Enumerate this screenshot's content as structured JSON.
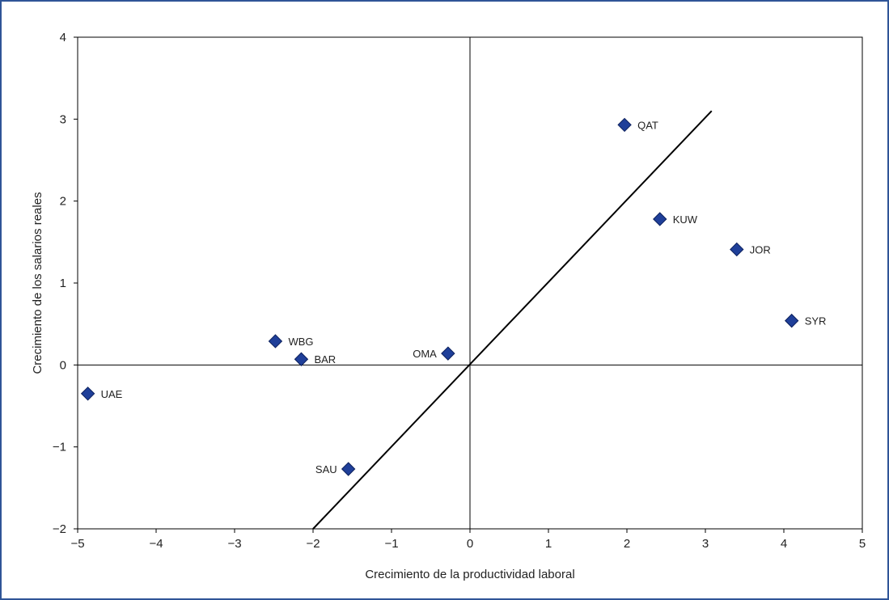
{
  "chart_data": {
    "type": "scatter",
    "title": "",
    "xlabel": "Crecimiento de la productividad laboral",
    "ylabel": "Crecimiento de los salarios reales",
    "xlim": [
      -5,
      5
    ],
    "ylim": [
      -2,
      4
    ],
    "xticks": [
      -5,
      -4,
      -3,
      -2,
      -1,
      0,
      1,
      2,
      3,
      4,
      5
    ],
    "yticks": [
      -2,
      -1,
      0,
      1,
      2,
      3,
      4
    ],
    "xtick_labels": [
      "−5",
      "−4",
      "−3",
      "−2",
      "−1",
      "0",
      "1",
      "2",
      "3",
      "4",
      "5"
    ],
    "ytick_labels": [
      "−2",
      "−1",
      "0",
      "1",
      "2",
      "3",
      "4"
    ],
    "grid": false,
    "marker_color": "#1f3f99",
    "points": [
      {
        "label": "UAE",
        "x": -4.87,
        "y": -0.35,
        "label_side": "right"
      },
      {
        "label": "WBG",
        "x": -2.48,
        "y": 0.29,
        "label_side": "right"
      },
      {
        "label": "BAR",
        "x": -2.15,
        "y": 0.07,
        "label_side": "right"
      },
      {
        "label": "SAU",
        "x": -1.55,
        "y": -1.27,
        "label_side": "left"
      },
      {
        "label": "OMA",
        "x": -0.28,
        "y": 0.14,
        "label_side": "left"
      },
      {
        "label": "QAT",
        "x": 1.97,
        "y": 2.93,
        "label_side": "right"
      },
      {
        "label": "KUW",
        "x": 2.42,
        "y": 1.78,
        "label_side": "right"
      },
      {
        "label": "JOR",
        "x": 3.4,
        "y": 1.41,
        "label_side": "right"
      },
      {
        "label": "SYR",
        "x": 4.1,
        "y": 0.54,
        "label_side": "right"
      }
    ],
    "reference_line": {
      "x": [
        -2.0,
        3.08
      ],
      "y": [
        -2.0,
        3.1
      ]
    }
  }
}
